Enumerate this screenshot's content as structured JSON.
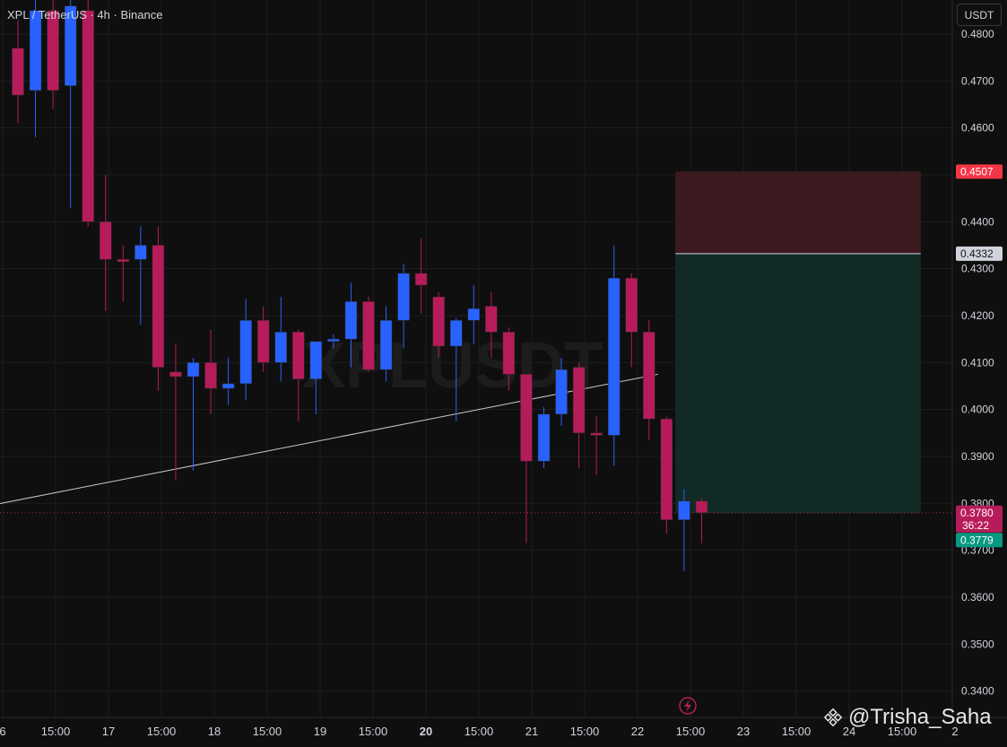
{
  "header": {
    "title": "XPL / TetherUS · 4h · Binance",
    "currency_button": "USDT"
  },
  "watermark": {
    "symbol_text": "XPLUSDT"
  },
  "credit": {
    "text": "@Trisha_Saha",
    "icon": "binance-logo-icon"
  },
  "bolt_icon": "lightning-icon",
  "colors": {
    "background": "#0f0f0f",
    "bull": "#2962ff",
    "bear": "#b71c5a",
    "grid": "#1e1e1e",
    "stop_zone": "#3d1a1f",
    "target_zone": "#122a25",
    "stop_label": "#f23645",
    "target_label": "#089981",
    "current_label": "#b71c5a"
  },
  "chart_data": {
    "type": "candlestick",
    "ylim": [
      0.334,
      0.488
    ],
    "y_ticks": [
      "0.4800",
      "0.4700",
      "0.4600",
      "0.4500",
      "0.4400",
      "0.4300",
      "0.4200",
      "0.4100",
      "0.4000",
      "0.3900",
      "0.3800",
      "0.3700",
      "0.3600",
      "0.3500",
      "0.3400"
    ],
    "x_ticks": [
      "6",
      "15:00",
      "17",
      "15:00",
      "18",
      "15:00",
      "19",
      "15:00",
      "20",
      "15:00",
      "21",
      "15:00",
      "22",
      "15:00",
      "23",
      "15:00",
      "24",
      "15:00",
      "2"
    ],
    "candles": [
      {
        "o": 0.477,
        "h": 0.483,
        "l": 0.461,
        "c": 0.467
      },
      {
        "o": 0.468,
        "h": 0.49,
        "l": 0.458,
        "c": 0.485
      },
      {
        "o": 0.485,
        "h": 0.49,
        "l": 0.464,
        "c": 0.468
      },
      {
        "o": 0.469,
        "h": 0.492,
        "l": 0.443,
        "c": 0.486
      },
      {
        "o": 0.485,
        "h": 0.488,
        "l": 0.439,
        "c": 0.44
      },
      {
        "o": 0.44,
        "h": 0.45,
        "l": 0.421,
        "c": 0.432
      },
      {
        "o": 0.432,
        "h": 0.435,
        "l": 0.423,
        "c": 0.4315
      },
      {
        "o": 0.432,
        "h": 0.439,
        "l": 0.418,
        "c": 0.435
      },
      {
        "o": 0.435,
        "h": 0.439,
        "l": 0.404,
        "c": 0.409
      },
      {
        "o": 0.408,
        "h": 0.414,
        "l": 0.385,
        "c": 0.407
      },
      {
        "o": 0.407,
        "h": 0.411,
        "l": 0.387,
        "c": 0.41
      },
      {
        "o": 0.41,
        "h": 0.417,
        "l": 0.399,
        "c": 0.4045
      },
      {
        "o": 0.4045,
        "h": 0.411,
        "l": 0.401,
        "c": 0.4055
      },
      {
        "o": 0.4055,
        "h": 0.4235,
        "l": 0.402,
        "c": 0.419
      },
      {
        "o": 0.419,
        "h": 0.422,
        "l": 0.408,
        "c": 0.41
      },
      {
        "o": 0.41,
        "h": 0.424,
        "l": 0.406,
        "c": 0.4165
      },
      {
        "o": 0.4165,
        "h": 0.417,
        "l": 0.3975,
        "c": 0.4065
      },
      {
        "o": 0.4065,
        "h": 0.4145,
        "l": 0.399,
        "c": 0.4145
      },
      {
        "o": 0.4145,
        "h": 0.416,
        "l": 0.413,
        "c": 0.415
      },
      {
        "o": 0.415,
        "h": 0.427,
        "l": 0.409,
        "c": 0.423
      },
      {
        "o": 0.423,
        "h": 0.424,
        "l": 0.408,
        "c": 0.4085
      },
      {
        "o": 0.4085,
        "h": 0.422,
        "l": 0.406,
        "c": 0.419
      },
      {
        "o": 0.419,
        "h": 0.431,
        "l": 0.413,
        "c": 0.429
      },
      {
        "o": 0.429,
        "h": 0.4365,
        "l": 0.4205,
        "c": 0.4265
      },
      {
        "o": 0.424,
        "h": 0.425,
        "l": 0.411,
        "c": 0.4135
      },
      {
        "o": 0.4135,
        "h": 0.4195,
        "l": 0.3975,
        "c": 0.419
      },
      {
        "o": 0.419,
        "h": 0.4265,
        "l": 0.414,
        "c": 0.4215
      },
      {
        "o": 0.422,
        "h": 0.425,
        "l": 0.411,
        "c": 0.4165
      },
      {
        "o": 0.4165,
        "h": 0.4175,
        "l": 0.404,
        "c": 0.4075
      },
      {
        "o": 0.4075,
        "h": 0.4075,
        "l": 0.3715,
        "c": 0.389
      },
      {
        "o": 0.389,
        "h": 0.4005,
        "l": 0.3875,
        "c": 0.399
      },
      {
        "o": 0.399,
        "h": 0.411,
        "l": 0.3965,
        "c": 0.4085
      },
      {
        "o": 0.409,
        "h": 0.41,
        "l": 0.3875,
        "c": 0.395
      },
      {
        "o": 0.395,
        "h": 0.3985,
        "l": 0.386,
        "c": 0.3945
      },
      {
        "o": 0.3945,
        "h": 0.435,
        "l": 0.388,
        "c": 0.428
      },
      {
        "o": 0.428,
        "h": 0.429,
        "l": 0.409,
        "c": 0.4165
      },
      {
        "o": 0.4165,
        "h": 0.419,
        "l": 0.3935,
        "c": 0.398
      },
      {
        "o": 0.398,
        "h": 0.3985,
        "l": 0.3735,
        "c": 0.3765
      },
      {
        "o": 0.3765,
        "h": 0.383,
        "l": 0.3655,
        "c": 0.3805
      },
      {
        "o": 0.3805,
        "h": 0.381,
        "l": 0.3715,
        "c": 0.378
      }
    ],
    "trend_line": {
      "start": {
        "candle": -3,
        "price": 0.3785
      },
      "end": {
        "candle": 36.5,
        "price": 0.4075
      }
    },
    "position": {
      "type": "long",
      "entry": 0.4332,
      "stop": 0.4507,
      "target": 0.3779,
      "start_candle": 37.5,
      "end_candle": 51.5,
      "entry_label": "0.4332",
      "stop_label": "0.4507",
      "target_label": "0.3779"
    },
    "current_price": {
      "value": 0.378,
      "label": "0.3780",
      "countdown": "36:22"
    }
  }
}
